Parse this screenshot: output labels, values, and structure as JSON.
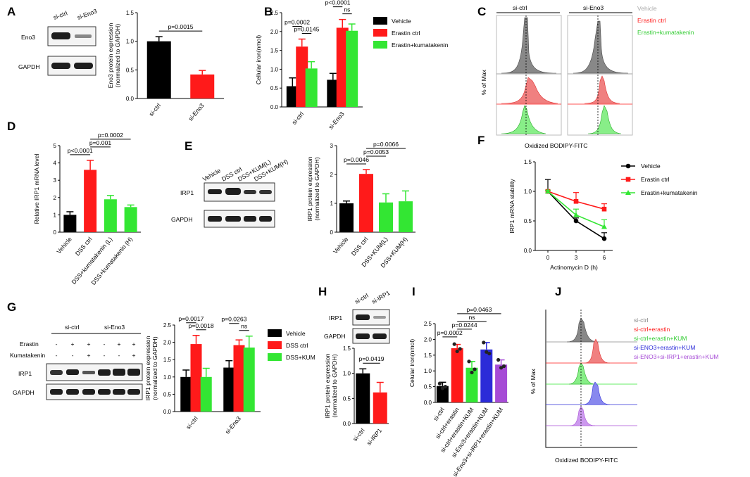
{
  "colors": {
    "black": "#000000",
    "red": "#ff1a1a",
    "green": "#33e633",
    "blue": "#2b2bd8",
    "purple": "#a64bd6",
    "grey": "#888888"
  },
  "panels": {
    "A": {
      "letter": "A",
      "blot_cols": [
        "si-ctrl",
        "si-Eno3"
      ],
      "blot_rows": [
        "Eno3",
        "GAPDH"
      ]
    },
    "B": {
      "letter": "B"
    },
    "C": {
      "letter": "C",
      "col_titles": [
        "si-ctrl",
        "si-Eno3"
      ],
      "legend": [
        "Vehicle",
        "Erastin ctrl",
        "Erastin+kumatakenin"
      ],
      "ylabel": "% of Max",
      "xlabel": "Oxidized BODIPY-FITC"
    },
    "D": {
      "letter": "D"
    },
    "E": {
      "letter": "E",
      "blot_cols": [
        "Vehicle",
        "DSS ctrl",
        "DSS+KUM(L)",
        "DSS+KUM(H)"
      ],
      "blot_rows": [
        "IRP1",
        "GAPDH"
      ]
    },
    "F": {
      "letter": "F"
    },
    "G": {
      "letter": "G",
      "groups": [
        "si-ctrl",
        "si-Eno3"
      ],
      "row_labels": [
        "Erastin",
        "Kumatakenin"
      ],
      "erastin_signs": [
        "-",
        "+",
        "+",
        "-",
        "+",
        "+"
      ],
      "kum_signs": [
        "-",
        "-",
        "+",
        "-",
        "-",
        "+"
      ],
      "blot_rows": [
        "IRP1",
        "GAPDH"
      ]
    },
    "H": {
      "letter": "H",
      "blot_cols": [
        "si-ctrl",
        "si-IRP1"
      ],
      "blot_rows": [
        "IRP1",
        "GAPDH"
      ]
    },
    "I": {
      "letter": "I"
    },
    "J": {
      "letter": "J",
      "legend": [
        "si-ctrl",
        "si-ctrl+erastin",
        "si-ctrl+erastin+KUM",
        "si-ENO3+erastin+KUM",
        "si-ENO3+si-IRP1+erastin+KUM"
      ],
      "ylabel": "% of Max",
      "xlabel": "Oxidized BODIPY-FITC"
    }
  },
  "chart_data": [
    {
      "id": "A",
      "type": "bar",
      "categories": [
        "si-ctrl",
        "si-Eno3"
      ],
      "values": [
        1.0,
        0.42
      ],
      "errors": [
        0.08,
        0.07
      ],
      "colors": [
        "#000000",
        "#ff1a1a"
      ],
      "ylabel": "Eno3 protein expression\n(normalized to GAPDH)",
      "ylim": [
        0,
        1.5
      ],
      "yticks": [
        "0.0",
        "0.5",
        "1.0",
        "1.5"
      ],
      "brackets": [
        {
          "label": "p=0.0015",
          "from": 0,
          "to": 1
        }
      ]
    },
    {
      "id": "B",
      "type": "bar",
      "groups": [
        "si-ctrl",
        "si-Eno3"
      ],
      "series": [
        {
          "name": "Vehicle",
          "values": [
            0.55,
            0.72
          ],
          "errors": [
            0.22,
            0.17
          ],
          "color": "#000000"
        },
        {
          "name": "Erastin ctrl",
          "values": [
            1.6,
            2.1
          ],
          "errors": [
            0.2,
            0.22
          ],
          "color": "#ff1a1a"
        },
        {
          "name": "Erastin+kumatakenin",
          "values": [
            1.02,
            2.02
          ],
          "errors": [
            0.18,
            0.18
          ],
          "color": "#33e633"
        }
      ],
      "ylabel": "Cellular iron(nmol)",
      "ylim": [
        0,
        2.5
      ],
      "yticks": [
        "0.0",
        "0.5",
        "1.0",
        "1.5",
        "2.0",
        "2.5"
      ],
      "brackets": [
        {
          "label": "p=0.0002",
          "group": 0,
          "from": 0,
          "to": 1
        },
        {
          "label": "p=0.0145",
          "group": 0,
          "from": 1,
          "to": 2
        },
        {
          "label": "p<0.0001",
          "group": 1,
          "from": 0,
          "to": 1
        },
        {
          "label": "ns",
          "group": 1,
          "from": 1,
          "to": 2
        }
      ]
    },
    {
      "id": "D",
      "type": "bar",
      "categories": [
        "Vehicle",
        "DSS ctrl",
        "DSS+kumatakenin (L)",
        "DSS+kumatakenin (H)"
      ],
      "values": [
        1.0,
        3.6,
        1.9,
        1.45
      ],
      "errors": [
        0.18,
        0.55,
        0.22,
        0.12
      ],
      "colors": [
        "#000000",
        "#ff1a1a",
        "#33e633",
        "#33e633"
      ],
      "ylabel": "Relative IRP1 mRNA level",
      "ylim": [
        0,
        5
      ],
      "yticks": [
        "0",
        "1",
        "2",
        "3",
        "4",
        "5"
      ],
      "brackets": [
        {
          "label": "p<0.0001",
          "from": 0,
          "to": 1
        },
        {
          "label": "p=0.001",
          "from": 1,
          "to": 2
        },
        {
          "label": "p=0.0002",
          "from": 1,
          "to": 3
        }
      ]
    },
    {
      "id": "E",
      "type": "bar",
      "categories": [
        "Vehicle",
        "DSS ctrl",
        "DSS+KUM(L)",
        "DSS+KUM(H)"
      ],
      "values": [
        1.0,
        2.02,
        1.03,
        1.07
      ],
      "errors": [
        0.08,
        0.15,
        0.3,
        0.36
      ],
      "colors": [
        "#000000",
        "#ff1a1a",
        "#33e633",
        "#33e633"
      ],
      "ylabel": "IRP1 protein expression\n(normalized to GAPDH)",
      "ylim": [
        0,
        3
      ],
      "yticks": [
        "0",
        "1",
        "2",
        "3"
      ],
      "brackets": [
        {
          "label": "p=0.0046",
          "from": 0,
          "to": 1
        },
        {
          "label": "p=0.0053",
          "from": 1,
          "to": 2
        },
        {
          "label": "p=0.0066",
          "from": 1,
          "to": 3
        }
      ]
    },
    {
      "id": "F",
      "type": "line",
      "x": [
        0,
        3,
        6
      ],
      "series": [
        {
          "name": "Vehicle",
          "values": [
            1.0,
            0.5,
            0.2
          ],
          "errors": [
            0.2,
            0.05,
            0.1
          ],
          "color": "#000000",
          "marker": "circle"
        },
        {
          "name": "Erastin ctrl",
          "values": [
            1.0,
            0.83,
            0.7
          ],
          "errors": [
            0.02,
            0.15,
            0.09
          ],
          "color": "#ff1a1a",
          "marker": "square"
        },
        {
          "name": "Erastin+kumatakenin",
          "values": [
            1.0,
            0.6,
            0.4
          ],
          "errors": [
            0.02,
            0.1,
            0.12
          ],
          "color": "#33e633",
          "marker": "triangle"
        }
      ],
      "xlabel": "Actinomycin D (h)",
      "ylabel": "IRP1 mRNA stability",
      "ylim": [
        0,
        1.5
      ],
      "yticks": [
        "0.0",
        "0.5",
        "1.0",
        "1.5"
      ],
      "xticks": [
        "0",
        "3",
        "6"
      ]
    },
    {
      "id": "G",
      "type": "bar",
      "groups": [
        "si-ctrl",
        "si-Eno3"
      ],
      "series": [
        {
          "name": "Vehicle",
          "values": [
            1.0,
            1.27
          ],
          "errors": [
            0.2,
            0.2
          ],
          "color": "#000000"
        },
        {
          "name": "DSS ctrl",
          "values": [
            1.95,
            1.92
          ],
          "errors": [
            0.25,
            0.15
          ],
          "color": "#ff1a1a"
        },
        {
          "name": "DSS+KUM",
          "values": [
            1.0,
            1.85
          ],
          "errors": [
            0.25,
            0.33
          ],
          "color": "#33e633"
        }
      ],
      "ylabel": "IRP1 protein expression\n(normalized to GAPDH)",
      "ylim": [
        0,
        2.5
      ],
      "yticks": [
        "0.0",
        "0.5",
        "1.0",
        "1.5",
        "2.0",
        "2.5"
      ],
      "brackets": [
        {
          "label": "p=0.0017",
          "group": 0,
          "from": 0,
          "to": 1
        },
        {
          "label": "p=0.0018",
          "group": 0,
          "from": 1,
          "to": 2
        },
        {
          "label": "p=0.0263",
          "group": 1,
          "from": 0,
          "to": 1
        },
        {
          "label": "ns",
          "group": 1,
          "from": 1,
          "to": 2
        }
      ]
    },
    {
      "id": "H",
      "type": "bar",
      "categories": [
        "si-ctrl",
        "si-IRP1"
      ],
      "values": [
        1.0,
        0.62
      ],
      "errors": [
        0.09,
        0.2
      ],
      "colors": [
        "#000000",
        "#ff1a1a"
      ],
      "ylabel": "IRP1 protein expression\n(normalized to GAPDH)",
      "ylim": [
        0,
        1.5
      ],
      "yticks": [
        "0.0",
        "0.5",
        "1.0",
        "1.5"
      ],
      "brackets": [
        {
          "label": "p=0.0419",
          "from": 0,
          "to": 1
        }
      ]
    },
    {
      "id": "I",
      "type": "bar",
      "categories": [
        "si-ctrl",
        "si-ctrl+erastin",
        "si-ctrl+erastin+KUM",
        "si-Eno3+erastin+KUM",
        "si-Eno3+si-IRP1+erastin+KUM"
      ],
      "values": [
        0.52,
        1.72,
        1.1,
        1.68,
        1.2
      ],
      "errors": [
        0.12,
        0.12,
        0.2,
        0.22,
        0.15
      ],
      "colors": [
        "#000000",
        "#ff1a1a",
        "#33e633",
        "#2b2bd8",
        "#a64bd6"
      ],
      "points": [
        [
          0.6,
          0.45,
          0.5
        ],
        [
          1.85,
          1.62,
          1.7
        ],
        [
          1.3,
          0.95,
          1.05
        ],
        [
          1.9,
          1.6,
          1.55
        ],
        [
          1.35,
          1.1,
          1.15
        ]
      ],
      "ylabel": "Celular iron(nmol)",
      "ylim": [
        0,
        2.5
      ],
      "yticks": [
        "0.0",
        "0.5",
        "1.0",
        "1.5",
        "2.0",
        "2.5"
      ],
      "brackets": [
        {
          "label": "p=0.0002",
          "from": 0,
          "to": 1
        },
        {
          "label": "p=0.0244",
          "from": 1,
          "to": 2
        },
        {
          "label": "ns",
          "from": 1,
          "to": 3
        },
        {
          "label": "p=0.0463",
          "from": 1,
          "to": 4
        }
      ]
    }
  ]
}
